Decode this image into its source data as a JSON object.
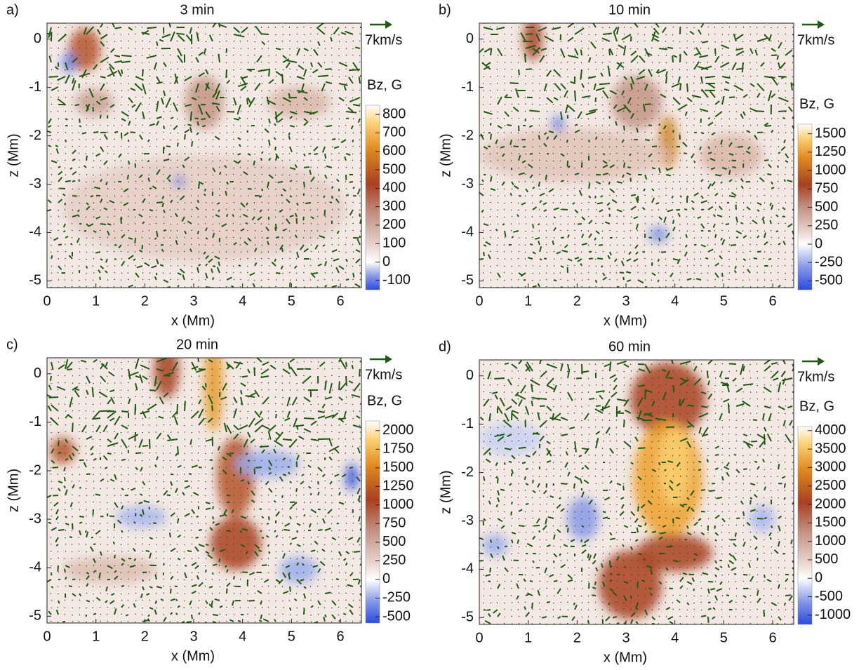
{
  "chart_data": [
    {
      "type": "heatmap",
      "panel_label": "a)",
      "title": "3 min",
      "xlabel": "x (Mm)",
      "ylabel": "z (Mm)",
      "xlim": [
        0,
        6.43
      ],
      "ylim": [
        -5.14,
        0.33
      ],
      "xticks": [
        0,
        1,
        2,
        3,
        4,
        5,
        6
      ],
      "yticks": [
        0,
        -1,
        -2,
        -3,
        -4,
        -5
      ],
      "vector_label": "7km/s",
      "vector_color": "#1f5a12",
      "colorbar": {
        "label": "Bz, G",
        "lim": [
          -150,
          850
        ],
        "ticks": [
          800,
          700,
          600,
          500,
          400,
          300,
          200,
          100,
          0,
          -100
        ]
      }
    },
    {
      "type": "heatmap",
      "panel_label": "b)",
      "title": "10 min",
      "xlabel": "x (Mm)",
      "ylabel": "z (Mm)",
      "xlim": [
        0,
        6.43
      ],
      "ylim": [
        -5.14,
        0.33
      ],
      "xticks": [
        0,
        1,
        2,
        3,
        4,
        5,
        6
      ],
      "yticks": [
        0,
        -1,
        -2,
        -3,
        -4,
        -5
      ],
      "vector_label": "7km/s",
      "vector_color": "#1f5a12",
      "colorbar": {
        "label": "Bz, G",
        "lim": [
          -620,
          1630
        ],
        "ticks": [
          1500,
          1250,
          1000,
          750,
          500,
          250,
          0,
          -250,
          -500
        ]
      }
    },
    {
      "type": "heatmap",
      "panel_label": "c)",
      "title": "20 min",
      "xlabel": "x (Mm)",
      "ylabel": "z (Mm)",
      "xlim": [
        0,
        6.43
      ],
      "ylim": [
        -5.14,
        0.33
      ],
      "xticks": [
        0,
        1,
        2,
        3,
        4,
        5,
        6
      ],
      "yticks": [
        0,
        -1,
        -2,
        -3,
        -4,
        -5
      ],
      "vector_label": "7km/s",
      "vector_color": "#1f5a12",
      "colorbar": {
        "label": "Bz, G",
        "lim": [
          -585,
          2130
        ],
        "ticks": [
          2000,
          1750,
          1500,
          1250,
          1000,
          750,
          500,
          250,
          0,
          -250,
          -500
        ]
      }
    },
    {
      "type": "heatmap",
      "panel_label": "d)",
      "title": "60 min",
      "xlabel": "x (Mm)",
      "ylabel": "z (Mm)",
      "xlim": [
        0,
        6.43
      ],
      "ylim": [
        -5.14,
        0.33
      ],
      "xticks": [
        0,
        1,
        2,
        3,
        4,
        5,
        6
      ],
      "yticks": [
        0,
        -1,
        -2,
        -3,
        -4,
        -5
      ],
      "vector_label": "7km/s",
      "vector_color": "#1f5a12",
      "colorbar": {
        "label": "Bz, G",
        "lim": [
          -1250,
          4110
        ],
        "ticks": [
          4000,
          3500,
          3000,
          2500,
          2000,
          1500,
          1000,
          500,
          0,
          -500,
          -1000
        ]
      }
    }
  ]
}
